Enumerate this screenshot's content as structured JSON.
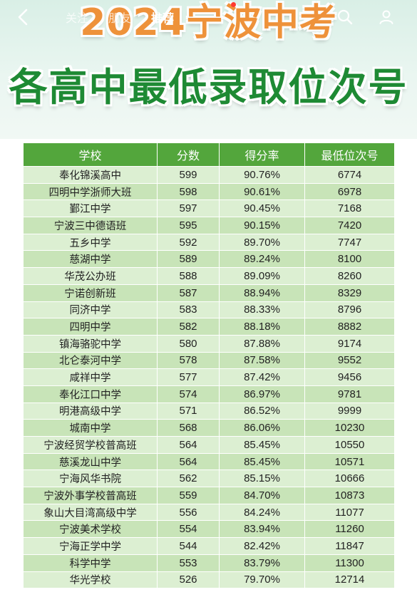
{
  "navbar": {
    "tabs": [
      {
        "label": "关注"
      },
      {
        "label": "朋友"
      },
      {
        "label": "推荐"
      }
    ]
  },
  "banner": {
    "title_line1": "2024宁波中考",
    "title_line2": "各高中最低录取位次号"
  },
  "table": {
    "headers": [
      "学校",
      "分数",
      "得分率",
      "最低位次号"
    ],
    "rows": [
      [
        "奉化锦溪高中",
        "599",
        "90.76%",
        "6774"
      ],
      [
        "四明中学浙师大班",
        "598",
        "90.61%",
        "6978"
      ],
      [
        "鄞江中学",
        "597",
        "90.45%",
        "7168"
      ],
      [
        "宁波三中德语班",
        "595",
        "90.15%",
        "7420"
      ],
      [
        "五乡中学",
        "592",
        "89.70%",
        "7747"
      ],
      [
        "慈湖中学",
        "589",
        "89.24%",
        "8100"
      ],
      [
        "华茂公办班",
        "588",
        "89.09%",
        "8260"
      ],
      [
        "宁诺创新班",
        "587",
        "88.94%",
        "8329"
      ],
      [
        "同济中学",
        "583",
        "88.33%",
        "8796"
      ],
      [
        "四明中学",
        "582",
        "88.18%",
        "8882"
      ],
      [
        "镇海骆驼中学",
        "580",
        "87.88%",
        "9174"
      ],
      [
        "北仑泰河中学",
        "578",
        "87.58%",
        "9552"
      ],
      [
        "咸祥中学",
        "577",
        "87.42%",
        "9456"
      ],
      [
        "奉化江口中学",
        "574",
        "86.97%",
        "9781"
      ],
      [
        "明港高级中学",
        "571",
        "86.52%",
        "9999"
      ],
      [
        "城南中学",
        "568",
        "86.06%",
        "10230"
      ],
      [
        "宁波经贸学校普高班",
        "564",
        "85.45%",
        "10550"
      ],
      [
        "慈溪龙山中学",
        "564",
        "85.45%",
        "10571"
      ],
      [
        "宁海风华书院",
        "562",
        "85.15%",
        "10666"
      ],
      [
        "宁波外事学校普高班",
        "559",
        "84.70%",
        "10873"
      ],
      [
        "象山大目湾高级中学",
        "556",
        "84.24%",
        "11077"
      ],
      [
        "宁波美术学校",
        "554",
        "83.94%",
        "11260"
      ],
      [
        "宁海正学中学",
        "544",
        "82.42%",
        "11847"
      ],
      [
        "科学中学",
        "553",
        "83.79%",
        "11300"
      ],
      [
        "华光学校",
        "526",
        "79.70%",
        "12714"
      ]
    ]
  }
}
